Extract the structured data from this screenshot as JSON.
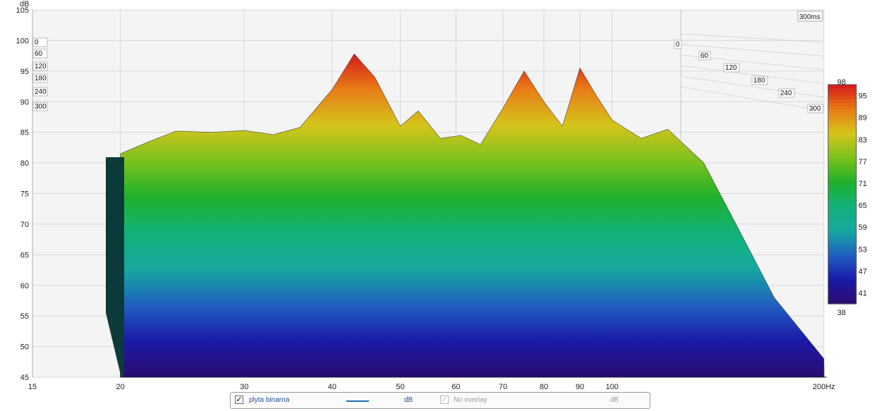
{
  "chart_data": {
    "type": "waterfall",
    "y_unit": "dB",
    "y_ticks": [
      "105",
      "100",
      "95",
      "90",
      "85",
      "80",
      "75",
      "70",
      "65",
      "60",
      "55",
      "50",
      "45"
    ],
    "ylim": [
      45,
      105
    ],
    "x_ticks": [
      "15",
      "20",
      "30",
      "40",
      "50",
      "60",
      "70",
      "80",
      "90",
      "100",
      "200Hz"
    ],
    "x_values": [
      15,
      20,
      30,
      40,
      50,
      60,
      70,
      80,
      90,
      100,
      200
    ],
    "time_max_label": "300ms",
    "time_labels_left": [
      "0",
      "60",
      "120",
      "180",
      "240",
      "300"
    ],
    "time_labels_right": [
      "0",
      "60",
      "120",
      "180",
      "240",
      "300"
    ],
    "colorbar_ticks": [
      "98",
      "95",
      "89",
      "83",
      "77",
      "71",
      "65",
      "59",
      "53",
      "47",
      "41",
      "38"
    ],
    "colorbar_range": [
      38,
      98
    ],
    "colors": [
      "#2a0a6e",
      "#1a1aa8",
      "#1f5fc0",
      "#17a8a0",
      "#12b27a",
      "#1fb02a",
      "#7cc21c",
      "#d6c41c",
      "#e87a16",
      "#d41818"
    ],
    "surface": {
      "freqs": [
        20,
        22,
        24,
        27,
        30,
        33,
        36,
        40,
        43,
        46,
        50,
        53,
        57,
        61,
        65,
        70,
        75,
        80,
        85,
        90,
        95,
        100,
        110,
        120,
        135,
        150,
        170,
        200
      ],
      "front_peak": [
        81.5,
        83.5,
        85.2,
        85.0,
        85.3,
        84.6,
        85.8,
        92.0,
        97.8,
        94.0,
        86.0,
        88.5,
        84.0,
        84.5,
        83.0,
        89.0,
        95.0,
        90.0,
        86.0,
        95.5,
        91.0,
        87.0,
        84.0,
        85.5,
        80.0,
        70.0,
        58.0,
        48.0
      ]
    }
  },
  "legend": {
    "series_name": "plyta binarna",
    "series_unit": "dB",
    "overlay_label": "No overlay",
    "overlay_unit": "dB",
    "series_color": "#1f6fb4"
  }
}
